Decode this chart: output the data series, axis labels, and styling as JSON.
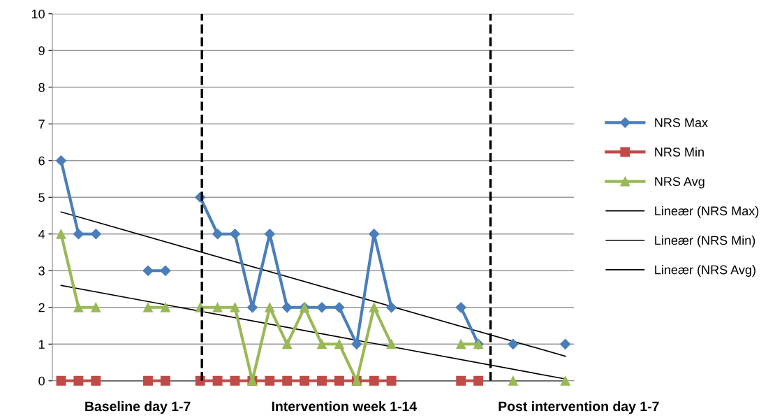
{
  "chart_data": {
    "type": "line",
    "categories": [
      null,
      null,
      null,
      null,
      null,
      null,
      null,
      null,
      null,
      null,
      null,
      null,
      null,
      null,
      null,
      null,
      null,
      null,
      null,
      null,
      null,
      null,
      null,
      null,
      null,
      null,
      null,
      null,
      null,
      null
    ],
    "series": [
      {
        "name": "NRS Max",
        "color": "#4a7ebb",
        "marker": "diamond",
        "values": [
          6,
          4,
          4,
          null,
          null,
          3,
          3,
          null,
          5,
          4,
          4,
          2,
          4,
          2,
          2,
          2,
          2,
          1,
          4,
          2,
          null,
          null,
          null,
          2,
          1,
          null,
          1,
          null,
          null,
          1
        ]
      },
      {
        "name": "NRS Min",
        "color": "#be4b48",
        "marker": "square",
        "values": [
          0,
          0,
          0,
          null,
          null,
          0,
          0,
          null,
          0,
          0,
          0,
          0,
          0,
          0,
          0,
          0,
          0,
          0,
          0,
          0,
          null,
          null,
          null,
          0,
          0,
          null,
          null,
          null,
          null,
          null
        ]
      },
      {
        "name": "NRS Avg",
        "color": "#98b954",
        "marker": "triangle",
        "values": [
          4,
          2,
          2,
          null,
          null,
          2,
          2,
          null,
          2,
          2,
          2,
          0,
          2,
          1,
          2,
          1,
          1,
          0,
          2,
          1,
          null,
          null,
          null,
          1,
          1,
          null,
          0,
          null,
          null,
          0
        ]
      },
      {
        "name": "Lineær (NRS Max)",
        "color": "#000000",
        "marker": "none",
        "values": [
          4.6,
          null,
          null,
          null,
          null,
          null,
          null,
          null,
          null,
          null,
          null,
          null,
          null,
          null,
          null,
          null,
          null,
          null,
          null,
          null,
          null,
          null,
          null,
          null,
          null,
          null,
          null,
          null,
          null,
          0.67
        ]
      },
      {
        "name": "Lineær (NRS Min)",
        "color": "#000000",
        "marker": "none",
        "values": [
          0,
          null,
          null,
          null,
          null,
          null,
          null,
          null,
          null,
          null,
          null,
          null,
          null,
          null,
          null,
          null,
          null,
          null,
          null,
          null,
          null,
          null,
          null,
          null,
          null,
          null,
          null,
          null,
          null,
          0
        ]
      },
      {
        "name": "Lineær (NRS Avg)",
        "color": "#000000",
        "marker": "none",
        "values": [
          2.6,
          null,
          null,
          null,
          null,
          null,
          null,
          null,
          null,
          null,
          null,
          null,
          null,
          null,
          null,
          null,
          null,
          null,
          null,
          null,
          null,
          null,
          null,
          null,
          null,
          null,
          null,
          null,
          null,
          0.05
        ]
      }
    ],
    "ylim": [
      0,
      10
    ],
    "yticks": [
      0,
      1,
      2,
      3,
      4,
      5,
      6,
      7,
      8,
      9,
      10
    ],
    "grid": "y",
    "legend": "right",
    "annotations": [
      "Baseline day 1-7",
      "Intervention week 1-14",
      "Post intervention day 1-7"
    ]
  }
}
